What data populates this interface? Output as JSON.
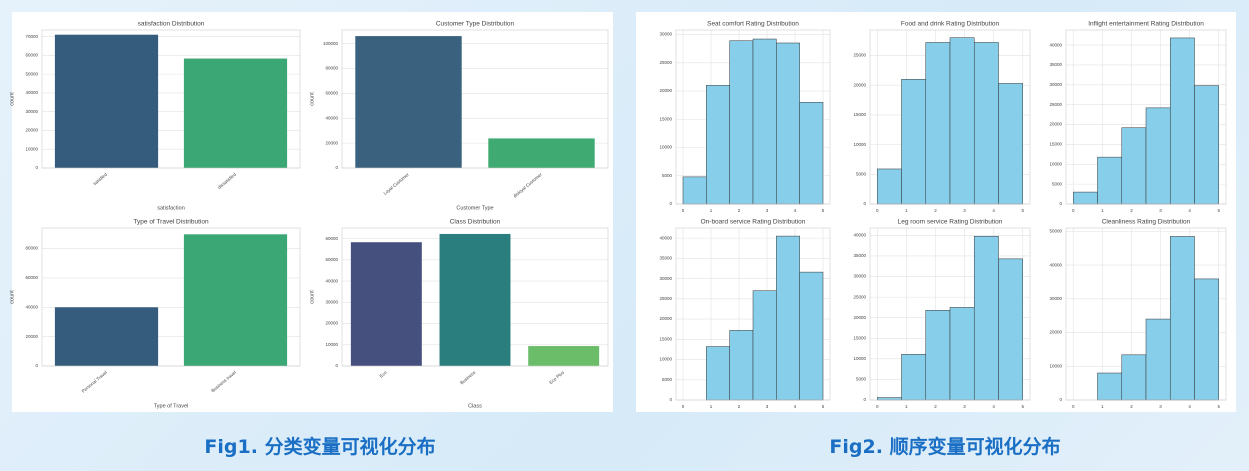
{
  "chart_data": [
    {
      "type": "bar",
      "title": "satisfaction Distribution",
      "xlabel": "satisfaction",
      "ylabel": "count",
      "categories": [
        "satisfied",
        "dissatisfied"
      ],
      "values": [
        71000,
        58300
      ],
      "colors": [
        "#365c7d",
        "#3aa775"
      ],
      "ylim": [
        0,
        73500
      ],
      "yticks": [
        0,
        10000,
        20000,
        30000,
        40000,
        50000,
        60000,
        70000
      ],
      "grid": true
    },
    {
      "type": "bar",
      "title": "Customer Type Distribution",
      "xlabel": "Customer Type",
      "ylabel": "count",
      "categories": [
        "Loyal Customer",
        "disloyal Customer"
      ],
      "values": [
        106100,
        23800
      ],
      "colors": [
        "#3a627f",
        "#3fab72"
      ],
      "ylim": [
        0,
        111000
      ],
      "yticks": [
        0,
        20000,
        40000,
        60000,
        80000,
        100000
      ],
      "grid": true
    },
    {
      "type": "bar",
      "title": "Type of Travel Distribution",
      "xlabel": "Type of Travel",
      "ylabel": "count",
      "categories": [
        "Personal Travel",
        "Business travel"
      ],
      "values": [
        40000,
        89700
      ],
      "colors": [
        "#365c7d",
        "#3aa775"
      ],
      "ylim": [
        0,
        94000
      ],
      "yticks": [
        0,
        20000,
        40000,
        60000,
        80000
      ],
      "grid": true
    },
    {
      "type": "bar",
      "title": "Class Distribution",
      "xlabel": "Class",
      "ylabel": "count",
      "categories": [
        "Eco",
        "Business",
        "Eco Plus"
      ],
      "values": [
        58300,
        62200,
        9400
      ],
      "colors": [
        "#46507f",
        "#2a7e7e",
        "#6bbd6a"
      ],
      "ylim": [
        0,
        65000
      ],
      "yticks": [
        0,
        10000,
        20000,
        30000,
        40000,
        50000,
        60000
      ],
      "grid": true
    },
    {
      "type": "histogram",
      "title": "Seat comfort Rating Distribution",
      "bins": [
        0,
        0.833,
        1.667,
        2.5,
        3.333,
        4.167,
        5
      ],
      "values": [
        4800,
        21000,
        28900,
        29200,
        28500,
        18000
      ],
      "color": "#87ceeb",
      "xlim": [
        -0.25,
        5.25
      ],
      "xticks": [
        0,
        1,
        2,
        3,
        4,
        5
      ],
      "ylim": [
        0,
        30800
      ],
      "yticks": [
        0,
        5000,
        10000,
        15000,
        20000,
        25000,
        30000
      ],
      "grid": true
    },
    {
      "type": "histogram",
      "title": "Food and drink Rating Distribution",
      "bins": [
        0,
        0.833,
        1.667,
        2.5,
        3.333,
        4.167,
        5
      ],
      "values": [
        5900,
        21000,
        27200,
        28000,
        27200,
        20300
      ],
      "color": "#87ceeb",
      "xlim": [
        -0.25,
        5.25
      ],
      "xticks": [
        0,
        1,
        2,
        3,
        4,
        5
      ],
      "ylim": [
        0,
        29300
      ],
      "yticks": [
        0,
        5000,
        10000,
        15000,
        20000,
        25000
      ],
      "grid": true
    },
    {
      "type": "histogram",
      "title": "Inflight entertainment Rating Distribution",
      "bins": [
        0,
        0.833,
        1.667,
        2.5,
        3.333,
        4.167,
        5
      ],
      "values": [
        3000,
        11800,
        19200,
        24200,
        41800,
        29800
      ],
      "color": "#87ceeb",
      "xlim": [
        -0.25,
        5.25
      ],
      "xticks": [
        0,
        1,
        2,
        3,
        4,
        5
      ],
      "ylim": [
        0,
        43800
      ],
      "yticks": [
        0,
        5000,
        10000,
        15000,
        20000,
        25000,
        30000,
        35000,
        40000
      ],
      "grid": true
    },
    {
      "type": "histogram",
      "title": "On-board service Rating Distribution",
      "bins": [
        0,
        0.833,
        1.667,
        2.5,
        3.333,
        4.167,
        5
      ],
      "values": [
        0,
        13200,
        17200,
        27000,
        40500,
        31600
      ],
      "color": "#87ceeb",
      "xlim": [
        -0.25,
        5.25
      ],
      "xticks": [
        0,
        1,
        2,
        3,
        4,
        5
      ],
      "ylim": [
        0,
        42500
      ],
      "yticks": [
        0,
        5000,
        10000,
        15000,
        20000,
        25000,
        30000,
        35000,
        40000
      ],
      "grid": true
    },
    {
      "type": "histogram",
      "title": "Leg room service Rating Distribution",
      "bins": [
        0,
        0.833,
        1.667,
        2.5,
        3.333,
        4.167,
        5
      ],
      "values": [
        600,
        11100,
        21800,
        22500,
        39800,
        34300
      ],
      "color": "#87ceeb",
      "xlim": [
        -0.25,
        5.25
      ],
      "xticks": [
        0,
        1,
        2,
        3,
        4,
        5
      ],
      "ylim": [
        0,
        41800
      ],
      "yticks": [
        0,
        5000,
        10000,
        15000,
        20000,
        25000,
        30000,
        35000,
        40000
      ],
      "grid": true
    },
    {
      "type": "histogram",
      "title": "Cleanliness Rating Distribution",
      "bins": [
        0,
        0.833,
        1.667,
        2.5,
        3.333,
        4.167,
        5
      ],
      "values": [
        0,
        8000,
        13400,
        24000,
        48500,
        35900
      ],
      "color": "#87ceeb",
      "xlim": [
        -0.25,
        5.25
      ],
      "xticks": [
        0,
        1,
        2,
        3,
        4,
        5
      ],
      "ylim": [
        0,
        51000
      ],
      "yticks": [
        0,
        10000,
        20000,
        30000,
        40000,
        50000
      ],
      "grid": true
    }
  ],
  "captions": [
    "Fig1. 分类变量可视化分布",
    "Fig2. 顺序变量可视化分布"
  ]
}
